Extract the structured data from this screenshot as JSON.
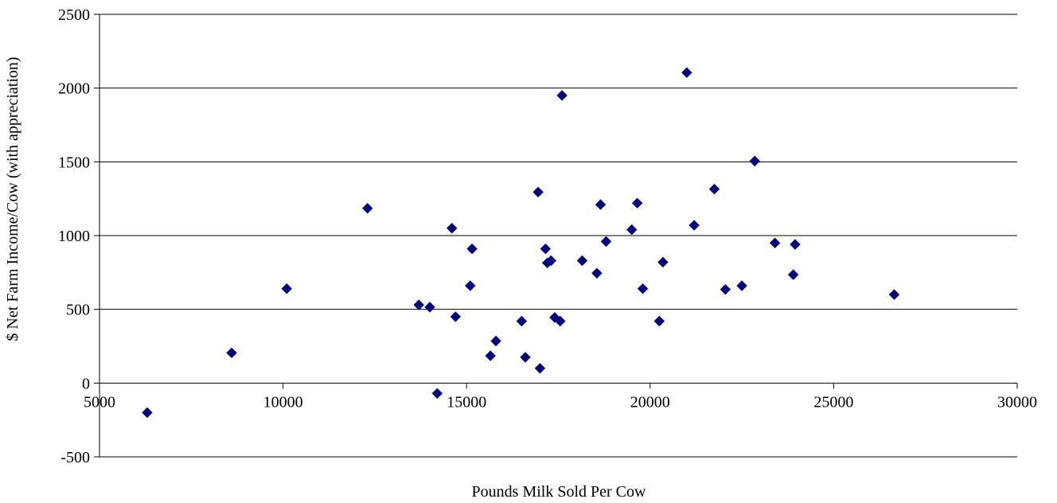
{
  "chart_data": {
    "type": "scatter",
    "title": "",
    "xlabel": "Pounds Milk Sold Per Cow",
    "ylabel": "$ Net Farm Income/Cow (with appreciation)",
    "xlim": [
      5000,
      30000
    ],
    "ylim": [
      -500,
      2500
    ],
    "xticks": [
      5000,
      10000,
      15000,
      20000,
      25000,
      30000
    ],
    "yticks": [
      -500,
      0,
      500,
      1000,
      1500,
      2000,
      2500
    ],
    "grid": "horizontal",
    "legend": "none",
    "marker": "diamond",
    "marker_color": "#000080",
    "points": [
      {
        "x": 6300,
        "y": -200
      },
      {
        "x": 8600,
        "y": 205
      },
      {
        "x": 10100,
        "y": 640
      },
      {
        "x": 12300,
        "y": 1185
      },
      {
        "x": 13700,
        "y": 530
      },
      {
        "x": 14000,
        "y": 515
      },
      {
        "x": 14200,
        "y": -70
      },
      {
        "x": 14600,
        "y": 1050
      },
      {
        "x": 14700,
        "y": 450
      },
      {
        "x": 15100,
        "y": 660
      },
      {
        "x": 15150,
        "y": 910
      },
      {
        "x": 15650,
        "y": 185
      },
      {
        "x": 15800,
        "y": 285
      },
      {
        "x": 16500,
        "y": 420
      },
      {
        "x": 16600,
        "y": 175
      },
      {
        "x": 16950,
        "y": 1295
      },
      {
        "x": 17000,
        "y": 100
      },
      {
        "x": 17150,
        "y": 910
      },
      {
        "x": 17200,
        "y": 815
      },
      {
        "x": 17300,
        "y": 830
      },
      {
        "x": 17400,
        "y": 445
      },
      {
        "x": 17550,
        "y": 420
      },
      {
        "x": 17600,
        "y": 1950
      },
      {
        "x": 18150,
        "y": 830
      },
      {
        "x": 18550,
        "y": 745
      },
      {
        "x": 18650,
        "y": 1210
      },
      {
        "x": 18800,
        "y": 960
      },
      {
        "x": 19500,
        "y": 1040
      },
      {
        "x": 19650,
        "y": 1220
      },
      {
        "x": 19800,
        "y": 640
      },
      {
        "x": 20250,
        "y": 420
      },
      {
        "x": 20350,
        "y": 820
      },
      {
        "x": 21000,
        "y": 2105
      },
      {
        "x": 21200,
        "y": 1070
      },
      {
        "x": 21750,
        "y": 1315
      },
      {
        "x": 22050,
        "y": 635
      },
      {
        "x": 22500,
        "y": 660
      },
      {
        "x": 22850,
        "y": 1505
      },
      {
        "x": 23400,
        "y": 950
      },
      {
        "x": 23900,
        "y": 735
      },
      {
        "x": 23950,
        "y": 940
      },
      {
        "x": 26650,
        "y": 600
      }
    ]
  }
}
